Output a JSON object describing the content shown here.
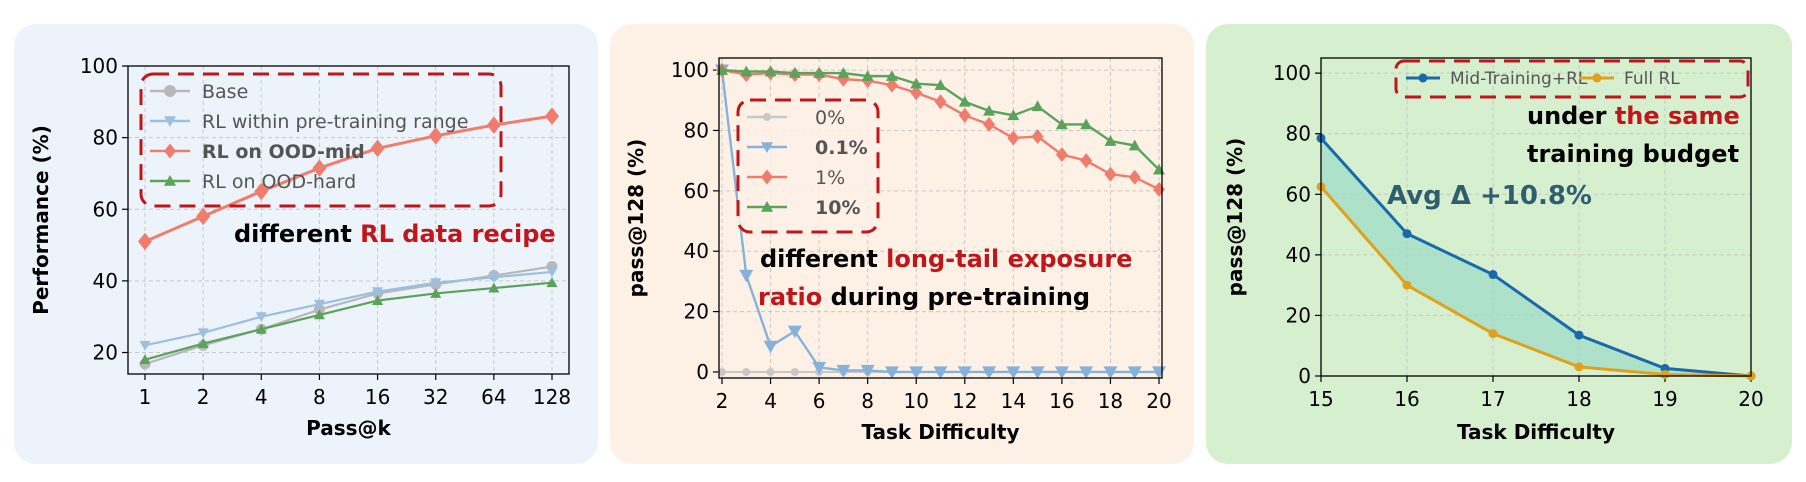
{
  "chart_data": [
    {
      "type": "line",
      "xlabel": "Pass@k",
      "ylabel": "Performance (%)",
      "categories": [
        "1",
        "2",
        "4",
        "8",
        "16",
        "32",
        "64",
        "128"
      ],
      "ylim": [
        14,
        100
      ],
      "yticks": [
        20,
        40,
        60,
        80,
        100
      ],
      "series": [
        {
          "name": "Base",
          "color": "#b8b8b8",
          "marker": "circle",
          "values": [
            16.8,
            22.0,
            26.5,
            32.0,
            36.5,
            39.0,
            41.5,
            44.0
          ]
        },
        {
          "name": "RL within pre-training range",
          "color": "#9cbfe0",
          "marker": "triangle-down",
          "values": [
            22.0,
            25.5,
            30.0,
            33.5,
            37.0,
            39.5,
            41.0,
            42.5
          ]
        },
        {
          "name": "RL on OOD-mid",
          "color": "#f07c6e",
          "marker": "diamond",
          "values": [
            51.0,
            58.0,
            65.0,
            71.5,
            77.0,
            80.5,
            83.5,
            86.0
          ]
        },
        {
          "name": "RL on OOD-hard",
          "color": "#5aa35a",
          "marker": "triangle-up",
          "values": [
            18.0,
            22.5,
            26.5,
            30.5,
            34.5,
            36.5,
            38.0,
            39.5
          ]
        }
      ],
      "annotation": {
        "prefix": "different ",
        "highlight": "RL data recipe"
      }
    },
    {
      "type": "line",
      "xlabel": "Task Difficulty",
      "ylabel": "pass@128 (%)",
      "x": [
        2,
        3,
        4,
        5,
        6,
        7,
        8,
        9,
        10,
        11,
        12,
        13,
        14,
        15,
        16,
        17,
        18,
        19,
        20
      ],
      "xticks": [
        "2",
        "4",
        "6",
        "8",
        "10",
        "12",
        "14",
        "16",
        "18",
        "20"
      ],
      "xlim": [
        2,
        20
      ],
      "ylim": [
        -2,
        104
      ],
      "yticks": [
        0,
        20,
        40,
        60,
        80,
        100
      ],
      "series": [
        {
          "name": "0%",
          "color": "#c8c8c8",
          "marker": "circle",
          "values": [
            0,
            0,
            0,
            0,
            0,
            0,
            0,
            0,
            0,
            0,
            0,
            0,
            0,
            0,
            0,
            0,
            0,
            0,
            0
          ]
        },
        {
          "name": "0.1%",
          "color": "#86b2da",
          "marker": "triangle-down",
          "values": [
            100,
            32,
            8.5,
            13.5,
            1.5,
            0.5,
            0.5,
            0,
            0,
            0,
            0,
            0,
            0,
            0,
            0,
            0,
            0,
            0,
            0
          ]
        },
        {
          "name": "1%",
          "color": "#f07c6e",
          "marker": "diamond",
          "values": [
            100,
            98.5,
            99,
            98.5,
            98.5,
            97,
            96.5,
            95,
            92.5,
            89.5,
            85,
            82,
            77.5,
            78,
            72,
            70,
            65.5,
            64.5,
            60.5
          ]
        },
        {
          "name": "10%",
          "color": "#5aa35a",
          "marker": "triangle-up",
          "values": [
            100,
            99.5,
            99.5,
            99,
            99,
            99,
            98,
            98,
            95.5,
            95,
            89.5,
            86.5,
            85,
            88,
            82,
            82,
            76.5,
            75,
            67
          ]
        }
      ],
      "annotation": {
        "line1_prefix": "different ",
        "line1_highlight": "long-tail exposure",
        "line2_highlight": "ratio",
        "line2_suffix": " during pre-training"
      }
    },
    {
      "type": "area",
      "xlabel": "Task Difficulty",
      "ylabel": "pass@128 (%)",
      "x": [
        15,
        16,
        17,
        18,
        19,
        20
      ],
      "xlim": [
        15,
        20
      ],
      "ylim": [
        0,
        105
      ],
      "yticks": [
        0,
        20,
        40,
        60,
        80,
        100
      ],
      "series": [
        {
          "name": "Mid-Training+RL",
          "color": "#1a6aab",
          "values": [
            78.5,
            47,
            33.5,
            13.5,
            2.5,
            0
          ]
        },
        {
          "name": "Full RL",
          "color": "#e0a21a",
          "values": [
            62.5,
            30,
            14,
            3,
            0.5,
            0
          ]
        }
      ],
      "fill_color": "#9fdcc8",
      "delta_label": "Avg Δ +10.8%",
      "annotation": {
        "line1_prefix": "under ",
        "line1_highlight": "the same",
        "line2": "training budget"
      }
    }
  ]
}
